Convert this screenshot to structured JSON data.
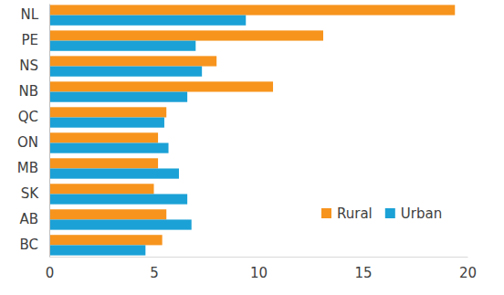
{
  "chart_data": {
    "type": "bar",
    "orientation": "horizontal",
    "categories": [
      "NL",
      "PE",
      "NS",
      "NB",
      "QC",
      "ON",
      "MB",
      "SK",
      "AB",
      "BC"
    ],
    "series": [
      {
        "name": "Rural",
        "color": "#f7941d",
        "values": [
          19.4,
          13.1,
          8.0,
          10.7,
          5.6,
          5.2,
          5.2,
          5.0,
          5.6,
          5.4
        ]
      },
      {
        "name": "Urban",
        "color": "#1ba1d6",
        "values": [
          9.4,
          7.0,
          7.3,
          6.6,
          5.5,
          5.7,
          6.2,
          6.6,
          6.8,
          4.6
        ]
      }
    ],
    "xlim": [
      0,
      20
    ],
    "xticks": [
      0,
      5,
      10,
      15,
      20
    ],
    "grid": false,
    "legend": "lower right"
  }
}
